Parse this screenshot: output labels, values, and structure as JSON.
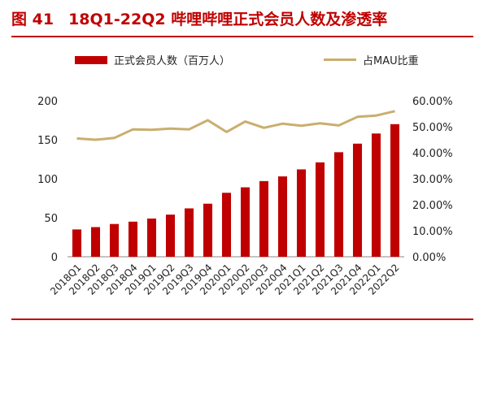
{
  "figure": {
    "number": "图 41",
    "title": "18Q1-22Q2 哔哩哔哩正式会员人数及渗透率"
  },
  "chart_data": {
    "type": "bar",
    "title": "18Q1-22Q2 哔哩哔哩正式会员人数及渗透率",
    "categories": [
      "2018Q1",
      "2018Q2",
      "2018Q3",
      "2018Q4",
      "2019Q1",
      "2019Q2",
      "2019Q3",
      "2019Q4",
      "2020Q1",
      "2020Q2",
      "2020Q3",
      "2020Q4",
      "2021Q1",
      "2021Q2",
      "2021Q3",
      "2021Q4",
      "2022Q1",
      "2022Q2"
    ],
    "series": [
      {
        "name": "正式会员人数（百万人）",
        "type": "bar",
        "axis": "left",
        "color": "#c00000",
        "values": [
          35,
          38,
          42,
          45,
          49,
          54,
          62,
          68,
          82,
          89,
          97,
          103,
          112,
          121,
          134,
          145,
          158,
          170
        ]
      },
      {
        "name": "占MAU比重",
        "type": "line",
        "axis": "right",
        "color": "#c9ae6e",
        "values": [
          45.5,
          45.0,
          45.7,
          49.0,
          48.8,
          49.3,
          49.0,
          52.5,
          48.0,
          52.0,
          49.6,
          51.2,
          50.4,
          51.3,
          50.5,
          53.8,
          54.3,
          56.0
        ]
      }
    ],
    "ylim_left": [
      0,
      200
    ],
    "yticks_left": [
      "0",
      "50",
      "100",
      "150",
      "200"
    ],
    "ylim_right": [
      0,
      60
    ],
    "yticks_right": [
      "0.00%",
      "10.00%",
      "20.00%",
      "30.00%",
      "40.00%",
      "50.00%",
      "60.00%"
    ],
    "legend_position": "top",
    "grid": false
  }
}
